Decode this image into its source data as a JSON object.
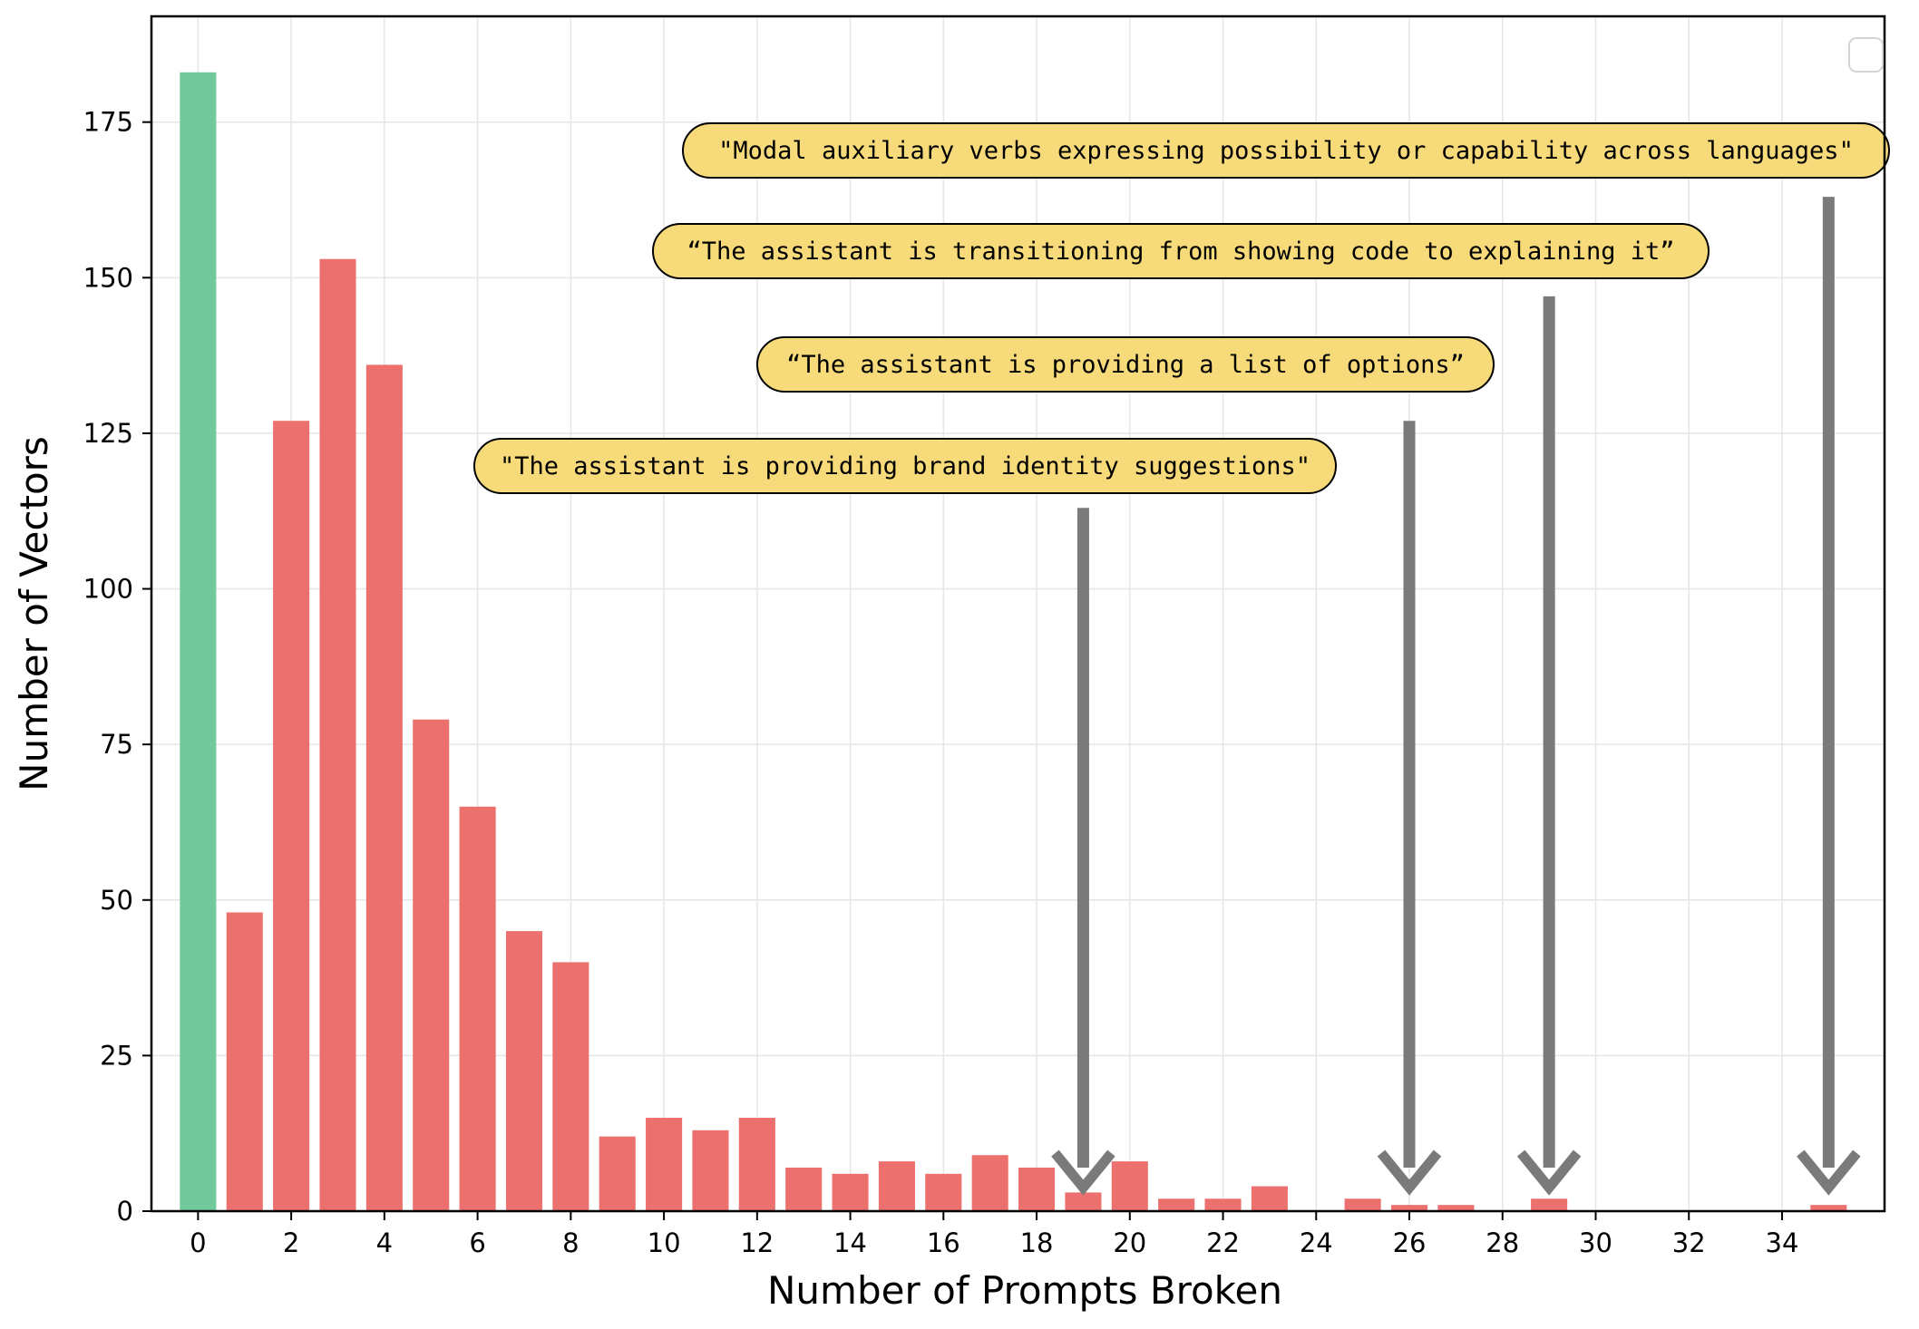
{
  "chart_data": {
    "type": "bar",
    "xlabel": "Number of Prompts Broken",
    "ylabel": "Number of Vectors",
    "xlim": [
      -1,
      36.2
    ],
    "ylim": [
      0,
      192
    ],
    "xticks": [
      0,
      2,
      4,
      6,
      8,
      10,
      12,
      14,
      16,
      18,
      20,
      22,
      24,
      26,
      28,
      30,
      32,
      34
    ],
    "yticks": [
      0,
      25,
      50,
      75,
      100,
      125,
      150,
      175
    ],
    "grid": true,
    "legend": "top-right (empty)",
    "colors": {
      "zero": "#72c99b",
      "broken": "#ec706d",
      "arrow": "#7a7a7a",
      "note": "#f7da79"
    },
    "bars": [
      {
        "x": 0,
        "value": 183
      },
      {
        "x": 1,
        "value": 48
      },
      {
        "x": 2,
        "value": 127
      },
      {
        "x": 3,
        "value": 153
      },
      {
        "x": 4,
        "value": 136
      },
      {
        "x": 5,
        "value": 79
      },
      {
        "x": 6,
        "value": 65
      },
      {
        "x": 7,
        "value": 45
      },
      {
        "x": 8,
        "value": 40
      },
      {
        "x": 9,
        "value": 12
      },
      {
        "x": 10,
        "value": 15
      },
      {
        "x": 11,
        "value": 13
      },
      {
        "x": 12,
        "value": 15
      },
      {
        "x": 13,
        "value": 7
      },
      {
        "x": 14,
        "value": 6
      },
      {
        "x": 15,
        "value": 8
      },
      {
        "x": 16,
        "value": 6
      },
      {
        "x": 17,
        "value": 9
      },
      {
        "x": 18,
        "value": 7
      },
      {
        "x": 19,
        "value": 3
      },
      {
        "x": 20,
        "value": 8
      },
      {
        "x": 21,
        "value": 2
      },
      {
        "x": 22,
        "value": 2
      },
      {
        "x": 23,
        "value": 4
      },
      {
        "x": 25,
        "value": 2
      },
      {
        "x": 26,
        "value": 1
      },
      {
        "x": 27,
        "value": 1
      },
      {
        "x": 29,
        "value": 2
      },
      {
        "x": 35,
        "value": 1
      }
    ],
    "annotations": [
      {
        "text": "\"The assistant is providing brand identity suggestions\"",
        "target_x": 19
      },
      {
        "text": "“The assistant is providing a list of options”",
        "target_x": 26
      },
      {
        "text": "“The assistant is transitioning from showing code to explaining it”",
        "target_x": 29
      },
      {
        "text": "\"Modal auxiliary verbs expressing possibility or capability across languages\"",
        "target_x": 35
      }
    ]
  }
}
